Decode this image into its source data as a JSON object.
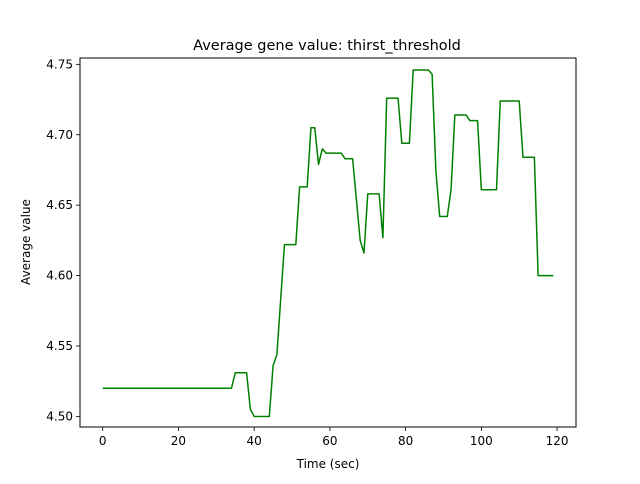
{
  "chart_data": {
    "type": "line",
    "title": "Average gene value: thirst_threshold",
    "xlabel": "Time (sec)",
    "ylabel": "Average value",
    "xlim": [
      -6,
      125
    ],
    "ylim": [
      4.4925,
      4.7545
    ],
    "xticks": [
      0,
      20,
      40,
      60,
      80,
      100,
      120
    ],
    "xtick_labels": [
      "0",
      "20",
      "40",
      "60",
      "80",
      "100",
      "120"
    ],
    "yticks": [
      4.5,
      4.55,
      4.6,
      4.65,
      4.7,
      4.75
    ],
    "ytick_labels": [
      "4.50",
      "4.55",
      "4.60",
      "4.65",
      "4.70",
      "4.75"
    ],
    "grid": false,
    "legend": "none",
    "series": [
      {
        "color": "#008000",
        "x": [
          0,
          34,
          35,
          38,
          39,
          40,
          44,
          45,
          46,
          48,
          51,
          52,
          54,
          55,
          56,
          57,
          58,
          59,
          63,
          64,
          66,
          68,
          69,
          70,
          73,
          74,
          75,
          78,
          79,
          81,
          82,
          86,
          87,
          88,
          89,
          91,
          92,
          93,
          96,
          97,
          99,
          100,
          104,
          105,
          110,
          111,
          114,
          115,
          119
        ],
        "y": [
          4.52,
          4.52,
          4.531,
          4.531,
          4.505,
          4.5,
          4.5,
          4.536,
          4.544,
          4.622,
          4.622,
          4.663,
          4.663,
          4.705,
          4.705,
          4.679,
          4.69,
          4.687,
          4.687,
          4.683,
          4.683,
          4.625,
          4.616,
          4.658,
          4.658,
          4.627,
          4.726,
          4.726,
          4.694,
          4.694,
          4.746,
          4.746,
          4.743,
          4.674,
          4.642,
          4.642,
          4.661,
          4.714,
          4.714,
          4.71,
          4.71,
          4.661,
          4.661,
          4.724,
          4.724,
          4.684,
          4.684,
          4.6,
          4.6
        ]
      }
    ]
  }
}
